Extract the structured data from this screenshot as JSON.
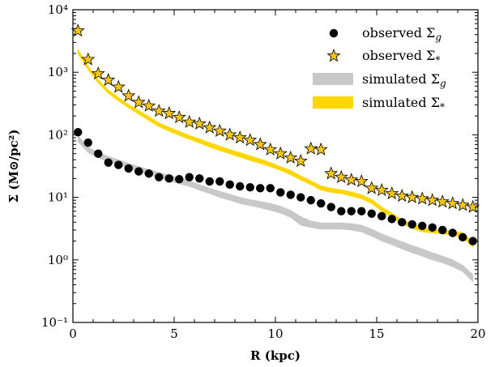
{
  "chart_data": {
    "type": "line",
    "xlabel": "R (kpc)",
    "ylabel": "Σ (M⊙/pc²)",
    "xlim": [
      0,
      20
    ],
    "ylim": [
      0.1,
      10000
    ],
    "yscale": "log",
    "x_ticks": [
      "0",
      "5",
      "10",
      "15",
      "20"
    ],
    "y_ticks": [
      "10⁻¹",
      "10⁰",
      "10¹",
      "10²",
      "10³",
      "10⁴"
    ],
    "legend_position": "top-right",
    "series": [
      {
        "name": "observed Σg",
        "kind": "scatter-circle",
        "color": "#000000",
        "x": [
          0.25,
          0.75,
          1.25,
          1.75,
          2.25,
          2.75,
          3.25,
          3.75,
          4.25,
          4.75,
          5.25,
          5.75,
          6.25,
          6.75,
          7.25,
          7.75,
          8.25,
          8.75,
          9.25,
          9.75,
          10.25,
          10.75,
          11.25,
          11.75,
          12.25,
          12.75,
          13.25,
          13.75,
          14.25,
          14.75,
          15.25,
          15.75,
          16.25,
          16.75,
          17.25,
          17.75,
          18.25,
          18.75,
          19.25,
          19.75
        ],
        "y": [
          110,
          75,
          50,
          36,
          33,
          29,
          26,
          24,
          21,
          20,
          19.5,
          21,
          20,
          18,
          18,
          16,
          15,
          14.5,
          14,
          14,
          12,
          11,
          10,
          9,
          8,
          7,
          6,
          6,
          6,
          5.5,
          5,
          4.5,
          4,
          3.7,
          3.5,
          3.3,
          3,
          2.7,
          2.3,
          2
        ]
      },
      {
        "name": "observed Σ*",
        "kind": "scatter-star",
        "color": "#f5c518",
        "x": [
          0.25,
          0.75,
          1.25,
          1.75,
          2.25,
          2.75,
          3.25,
          3.75,
          4.25,
          4.75,
          5.25,
          5.75,
          6.25,
          6.75,
          7.25,
          7.75,
          8.25,
          8.75,
          9.25,
          9.75,
          10.25,
          10.75,
          11.25,
          11.75,
          12.25,
          12.75,
          13.25,
          13.75,
          14.25,
          14.75,
          15.25,
          15.75,
          16.25,
          16.75,
          17.25,
          17.75,
          18.25,
          18.75,
          19.25,
          19.75
        ],
        "y": [
          4600,
          1600,
          950,
          750,
          580,
          420,
          330,
          290,
          240,
          220,
          190,
          160,
          150,
          130,
          115,
          100,
          90,
          82,
          70,
          58,
          50,
          43,
          38,
          60,
          58,
          24,
          21,
          19,
          18,
          14,
          13,
          11.5,
          10.5,
          10,
          9.5,
          9,
          8.5,
          8,
          7.5,
          7
        ]
      },
      {
        "name": "simulated Σg",
        "kind": "band",
        "color": "#c8c8c8",
        "x": [
          0.25,
          0.75,
          1.25,
          1.75,
          2.25,
          2.75,
          3.25,
          3.75,
          4.25,
          4.75,
          5.25,
          5.75,
          6.25,
          6.75,
          7.25,
          7.75,
          8.25,
          8.75,
          9.25,
          9.75,
          10.25,
          10.75,
          11.25,
          11.75,
          12.25,
          12.75,
          13.25,
          13.75,
          14.25,
          14.75,
          15.25,
          15.75,
          16.25,
          16.75,
          17.25,
          17.75,
          18.25,
          18.75,
          19.25,
          19.75
        ],
        "y_low": [
          78,
          52,
          43,
          37,
          33,
          29,
          26,
          23,
          21,
          18.5,
          16.5,
          15,
          13,
          11.5,
          10,
          9,
          8,
          7.4,
          6.8,
          6.2,
          5.6,
          4.8,
          3.6,
          3.3,
          3.1,
          3.1,
          3.1,
          3.0,
          2.8,
          2.4,
          2.0,
          1.75,
          1.5,
          1.3,
          1.15,
          1.0,
          0.9,
          0.78,
          0.65,
          0.45
        ],
        "y_high": [
          98,
          63,
          52,
          45,
          40,
          35,
          31,
          28,
          25,
          22.5,
          20.5,
          18.5,
          16,
          14,
          12.5,
          11.2,
          10,
          9.2,
          8.6,
          8.0,
          7.2,
          6.2,
          4.9,
          4.2,
          3.9,
          3.9,
          3.9,
          3.8,
          3.6,
          3.1,
          2.6,
          2.25,
          1.95,
          1.7,
          1.5,
          1.3,
          1.15,
          1.0,
          0.82,
          0.58
        ]
      },
      {
        "name": "simulated Σ*",
        "kind": "band",
        "color": "#ffd700",
        "x": [
          0.25,
          0.75,
          1.25,
          1.75,
          2.25,
          2.75,
          3.25,
          3.75,
          4.25,
          4.75,
          5.25,
          5.75,
          6.25,
          6.75,
          7.25,
          7.75,
          8.25,
          8.75,
          9.25,
          9.75,
          10.25,
          10.75,
          11.25,
          11.75,
          12.25,
          12.75,
          13.25,
          13.75,
          14.25,
          14.75,
          15.25,
          15.75,
          16.25,
          16.75,
          17.25,
          17.75,
          18.25,
          18.75,
          19.25,
          19.75
        ],
        "y_low": [
          2000,
          1100,
          680,
          460,
          350,
          270,
          215,
          170,
          135,
          115,
          98,
          85,
          74,
          64,
          56,
          50,
          44,
          39,
          35,
          31,
          27,
          23,
          19,
          16,
          13,
          12,
          11.5,
          10.5,
          9.5,
          8,
          6,
          4.8,
          3.8,
          3.2,
          2.8,
          2.7,
          2.6,
          2.5,
          2.3,
          1.6
        ],
        "y_high": [
          2300,
          1250,
          760,
          520,
          395,
          305,
          245,
          195,
          155,
          132,
          113,
          98,
          86,
          75,
          66,
          58,
          52,
          46,
          41,
          36,
          31,
          27,
          22,
          18.5,
          15.2,
          14,
          13.2,
          12.2,
          11,
          9.3,
          7,
          5.6,
          4.4,
          3.7,
          3.3,
          3.1,
          3.0,
          2.9,
          2.7,
          1.9
        ]
      }
    ]
  },
  "legend": {
    "items": [
      {
        "text": "observed Σ",
        "sub": "g",
        "kind": "circle",
        "color": "#000000"
      },
      {
        "text": "observed Σ",
        "sub": "*",
        "kind": "star",
        "color": "#f5c518"
      },
      {
        "text": "simulated Σ",
        "sub": "g",
        "kind": "patch",
        "color": "#c8c8c8"
      },
      {
        "text": "simulated Σ",
        "sub": "*",
        "kind": "patch",
        "color": "#ffd700"
      }
    ]
  }
}
